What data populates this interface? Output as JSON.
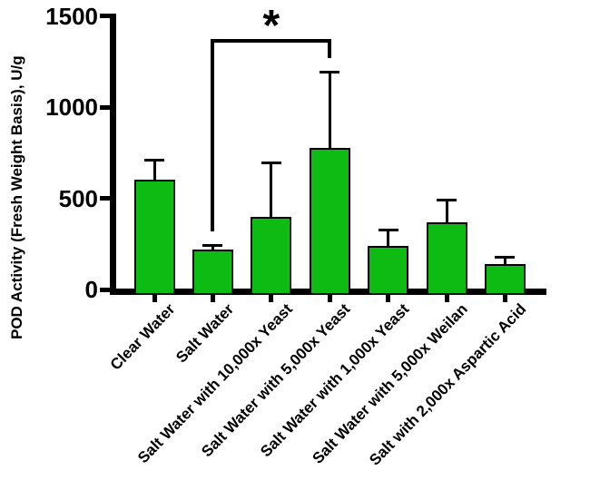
{
  "figure": {
    "background_color": "#ffffff",
    "bar_fill_color": "#0dbb12",
    "bar_border_color": "#000000",
    "axis_color": "#000000",
    "text_color": "#000000"
  },
  "chart_data": {
    "type": "bar",
    "title": "",
    "xlabel": "",
    "ylabel": "POD Activity (Fresh Weight Basis), U/g",
    "ylim": [
      0,
      1500
    ],
    "yticks": [
      0,
      500,
      1000,
      1500
    ],
    "ytick_labels": [
      "0",
      "500",
      "1000",
      "1500"
    ],
    "grid": false,
    "legend": "none",
    "categories": [
      "Clear Water",
      "Salt Water",
      "Salt Water with 10,000x Yeast",
      "Salt Water with 5,000x Yeast",
      "Salt Water with 1,000x Yeast",
      "Salt Water with 5,000x Weilan",
      "Salt with 2,000x Aspartic Acid"
    ],
    "values": [
      600,
      220,
      400,
      775,
      240,
      370,
      140
    ],
    "error_upper": [
      110,
      20,
      295,
      415,
      85,
      120,
      35
    ],
    "significance": {
      "label": "*",
      "from_category": "Salt Water",
      "to_category": "Salt Water with 5,000x Yeast",
      "from_index": 1,
      "to_index": 3
    }
  }
}
